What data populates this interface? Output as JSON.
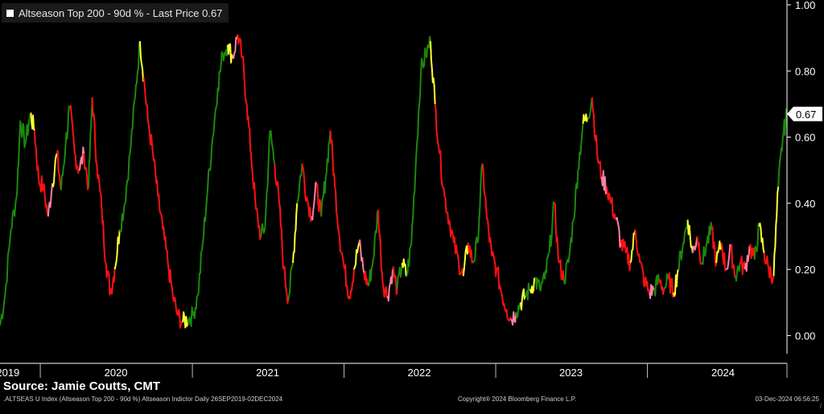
{
  "legend": {
    "label": "Altseason Top 200 - 90d % - Last Price 0.67",
    "swatch_color": "#ffffff"
  },
  "price_tag": {
    "text": "0.67",
    "value": 0.67
  },
  "source": "Source: Jamie Coutts, CMT",
  "footer": {
    "left": ".ALTSEAS U Index (Altseason Top 200 - 90d %) Altseason Indictor  Daily 26SEP2019-02DEC2024",
    "middle": "Copyright® 2024 Bloomberg Finance L.P.",
    "right": "03-Dec-2024 06:56:25",
    "corner": "/"
  },
  "colors": {
    "green": "#1a8a0a",
    "red": "#ff1010",
    "yellow": "#ffff33",
    "pink": "#ff7fa8",
    "axis": "#ffffff",
    "background": "#000000"
  },
  "chart_data": {
    "type": "line",
    "title": "Altseason Top 200 - 90d % - Last Price 0.67",
    "xlabel": "",
    "ylabel": "",
    "ylim": [
      -0.05,
      1.0
    ],
    "yticks": [
      "1.00",
      "0.80",
      "0.60",
      "0.40",
      "0.20",
      "0.00"
    ],
    "ytick_values": [
      1.0,
      0.8,
      0.6,
      0.4,
      0.2,
      0.0
    ],
    "xlim": [
      "2019-09-26",
      "2024-12-02"
    ],
    "xticks": [
      {
        "label": "2019",
        "date": "2019-10-15"
      },
      {
        "label": "2020",
        "date": "2020-07-01"
      },
      {
        "label": "2021",
        "date": "2021-07-01"
      },
      {
        "label": "2022",
        "date": "2022-07-01"
      },
      {
        "label": "2023",
        "date": "2023-07-01"
      },
      {
        "label": "2024",
        "date": "2024-07-01"
      }
    ],
    "year_dividers": [
      "2020-01-01",
      "2021-01-01",
      "2022-01-01",
      "2023-01-01",
      "2024-01-01"
    ],
    "grid": false,
    "legend_position": "top-left",
    "color_legend": {
      "g": "green",
      "r": "red",
      "y": "yellow",
      "p": "pink"
    },
    "series": [
      {
        "points": [
          [
            "2019-09-26",
            0.03,
            "y"
          ],
          [
            "2019-10-08",
            0.12,
            "g"
          ],
          [
            "2019-10-22",
            0.32,
            "g"
          ],
          [
            "2019-11-05",
            0.42,
            "g"
          ],
          [
            "2019-11-14",
            0.65,
            "g"
          ],
          [
            "2019-11-26",
            0.58,
            "g"
          ],
          [
            "2019-12-08",
            0.67,
            "g"
          ],
          [
            "2019-12-18",
            0.62,
            "y"
          ],
          [
            "2019-12-28",
            0.47,
            "r"
          ],
          [
            "2020-01-08",
            0.45,
            "r"
          ],
          [
            "2020-01-20",
            0.36,
            "r"
          ],
          [
            "2020-01-30",
            0.46,
            "p"
          ],
          [
            "2020-02-10",
            0.55,
            "y"
          ],
          [
            "2020-02-20",
            0.44,
            "r"
          ],
          [
            "2020-03-02",
            0.58,
            "g"
          ],
          [
            "2020-03-12",
            0.69,
            "g"
          ],
          [
            "2020-03-24",
            0.55,
            "r"
          ],
          [
            "2020-04-03",
            0.5,
            "r"
          ],
          [
            "2020-04-15",
            0.55,
            "p"
          ],
          [
            "2020-04-26",
            0.45,
            "r"
          ],
          [
            "2020-05-05",
            0.72,
            "g"
          ],
          [
            "2020-05-16",
            0.52,
            "r"
          ],
          [
            "2020-05-28",
            0.38,
            "r"
          ],
          [
            "2020-06-07",
            0.22,
            "r"
          ],
          [
            "2020-06-18",
            0.13,
            "r"
          ],
          [
            "2020-06-28",
            0.2,
            "r"
          ],
          [
            "2020-07-10",
            0.32,
            "y"
          ],
          [
            "2020-07-22",
            0.4,
            "g"
          ],
          [
            "2020-08-04",
            0.55,
            "g"
          ],
          [
            "2020-08-16",
            0.72,
            "g"
          ],
          [
            "2020-08-28",
            0.89,
            "g"
          ],
          [
            "2020-09-06",
            0.78,
            "y"
          ],
          [
            "2020-09-16",
            0.65,
            "r"
          ],
          [
            "2020-09-28",
            0.55,
            "r"
          ],
          [
            "2020-10-10",
            0.42,
            "r"
          ],
          [
            "2020-10-22",
            0.32,
            "r"
          ],
          [
            "2020-11-03",
            0.22,
            "r"
          ],
          [
            "2020-11-15",
            0.12,
            "r"
          ],
          [
            "2020-11-27",
            0.06,
            "r"
          ],
          [
            "2020-12-09",
            0.04,
            "r"
          ],
          [
            "2020-12-21",
            0.05,
            "y"
          ],
          [
            "2021-01-02",
            0.06,
            "g"
          ],
          [
            "2021-01-14",
            0.12,
            "g"
          ],
          [
            "2021-01-26",
            0.28,
            "g"
          ],
          [
            "2021-02-07",
            0.45,
            "g"
          ],
          [
            "2021-02-19",
            0.6,
            "g"
          ],
          [
            "2021-03-03",
            0.75,
            "g"
          ],
          [
            "2021-03-15",
            0.85,
            "g"
          ],
          [
            "2021-03-27",
            0.88,
            "g"
          ],
          [
            "2021-04-08",
            0.84,
            "y"
          ],
          [
            "2021-04-20",
            0.91,
            "p"
          ],
          [
            "2021-05-01",
            0.84,
            "r"
          ],
          [
            "2021-05-12",
            0.7,
            "r"
          ],
          [
            "2021-05-22",
            0.55,
            "r"
          ],
          [
            "2021-06-03",
            0.38,
            "r"
          ],
          [
            "2021-06-15",
            0.3,
            "r"
          ],
          [
            "2021-06-25",
            0.33,
            "g"
          ],
          [
            "2021-07-07",
            0.62,
            "g"
          ],
          [
            "2021-07-18",
            0.52,
            "g"
          ],
          [
            "2021-07-29",
            0.4,
            "r"
          ],
          [
            "2021-08-09",
            0.2,
            "r"
          ],
          [
            "2021-08-20",
            0.11,
            "r"
          ],
          [
            "2021-08-31",
            0.22,
            "g"
          ],
          [
            "2021-09-10",
            0.4,
            "y"
          ],
          [
            "2021-09-22",
            0.52,
            "g"
          ],
          [
            "2021-10-03",
            0.42,
            "r"
          ],
          [
            "2021-10-15",
            0.36,
            "r"
          ],
          [
            "2021-10-27",
            0.45,
            "p"
          ],
          [
            "2021-11-07",
            0.36,
            "r"
          ],
          [
            "2021-11-18",
            0.48,
            "g"
          ],
          [
            "2021-11-29",
            0.62,
            "g"
          ],
          [
            "2021-12-10",
            0.45,
            "r"
          ],
          [
            "2021-12-21",
            0.3,
            "r"
          ],
          [
            "2022-01-02",
            0.2,
            "r"
          ],
          [
            "2022-01-14",
            0.12,
            "r"
          ],
          [
            "2022-01-25",
            0.2,
            "r"
          ],
          [
            "2022-02-06",
            0.28,
            "y"
          ],
          [
            "2022-02-18",
            0.19,
            "p"
          ],
          [
            "2022-03-01",
            0.15,
            "r"
          ],
          [
            "2022-03-12",
            0.23,
            "g"
          ],
          [
            "2022-03-24",
            0.38,
            "g"
          ],
          [
            "2022-04-04",
            0.16,
            "r"
          ],
          [
            "2022-04-16",
            0.12,
            "r"
          ],
          [
            "2022-04-28",
            0.2,
            "p"
          ],
          [
            "2022-05-09",
            0.14,
            "r"
          ],
          [
            "2022-05-21",
            0.22,
            "g"
          ],
          [
            "2022-06-01",
            0.18,
            "y"
          ],
          [
            "2022-06-12",
            0.28,
            "g"
          ],
          [
            "2022-06-24",
            0.55,
            "g"
          ],
          [
            "2022-07-05",
            0.8,
            "g"
          ],
          [
            "2022-07-17",
            0.85,
            "g"
          ],
          [
            "2022-07-28",
            0.89,
            "g"
          ],
          [
            "2022-08-08",
            0.7,
            "y"
          ],
          [
            "2022-08-19",
            0.55,
            "r"
          ],
          [
            "2022-08-31",
            0.42,
            "r"
          ],
          [
            "2022-09-11",
            0.35,
            "r"
          ],
          [
            "2022-09-22",
            0.28,
            "r"
          ],
          [
            "2022-10-04",
            0.22,
            "r"
          ],
          [
            "2022-10-15",
            0.18,
            "r"
          ],
          [
            "2022-10-27",
            0.28,
            "y"
          ],
          [
            "2022-11-07",
            0.22,
            "r"
          ],
          [
            "2022-11-18",
            0.28,
            "g"
          ],
          [
            "2022-11-30",
            0.52,
            "g"
          ],
          [
            "2022-12-11",
            0.35,
            "r"
          ],
          [
            "2022-12-23",
            0.24,
            "r"
          ],
          [
            "2023-01-03",
            0.2,
            "r"
          ],
          [
            "2023-01-15",
            0.13,
            "r"
          ],
          [
            "2023-01-27",
            0.08,
            "r"
          ],
          [
            "2023-02-07",
            0.05,
            "r"
          ],
          [
            "2023-02-19",
            0.07,
            "p"
          ],
          [
            "2023-03-02",
            0.1,
            "g"
          ],
          [
            "2023-03-13",
            0.12,
            "y"
          ],
          [
            "2023-03-25",
            0.14,
            "g"
          ],
          [
            "2023-04-06",
            0.17,
            "y"
          ],
          [
            "2023-04-17",
            0.14,
            "g"
          ],
          [
            "2023-04-29",
            0.17,
            "g"
          ],
          [
            "2023-05-10",
            0.25,
            "g"
          ],
          [
            "2023-05-22",
            0.4,
            "g"
          ],
          [
            "2023-06-02",
            0.22,
            "r"
          ],
          [
            "2023-06-14",
            0.17,
            "r"
          ],
          [
            "2023-06-25",
            0.22,
            "g"
          ],
          [
            "2023-07-07",
            0.35,
            "g"
          ],
          [
            "2023-07-18",
            0.5,
            "g"
          ],
          [
            "2023-07-30",
            0.64,
            "g"
          ],
          [
            "2023-08-10",
            0.66,
            "y"
          ],
          [
            "2023-08-21",
            0.72,
            "g"
          ],
          [
            "2023-09-02",
            0.55,
            "r"
          ],
          [
            "2023-09-13",
            0.48,
            "r"
          ],
          [
            "2023-09-25",
            0.45,
            "p"
          ],
          [
            "2023-10-06",
            0.4,
            "r"
          ],
          [
            "2023-10-18",
            0.35,
            "r"
          ],
          [
            "2023-10-29",
            0.28,
            "p"
          ],
          [
            "2023-11-10",
            0.25,
            "r"
          ],
          [
            "2023-11-21",
            0.22,
            "r"
          ],
          [
            "2023-12-03",
            0.32,
            "y"
          ],
          [
            "2023-12-14",
            0.22,
            "r"
          ],
          [
            "2023-12-26",
            0.16,
            "r"
          ],
          [
            "2024-01-06",
            0.13,
            "r"
          ],
          [
            "2024-01-18",
            0.14,
            "p"
          ],
          [
            "2024-01-29",
            0.17,
            "g"
          ],
          [
            "2024-02-10",
            0.14,
            "r"
          ],
          [
            "2024-02-21",
            0.17,
            "g"
          ],
          [
            "2024-03-04",
            0.13,
            "r"
          ],
          [
            "2024-03-15",
            0.2,
            "y"
          ],
          [
            "2024-03-27",
            0.28,
            "g"
          ],
          [
            "2024-04-07",
            0.35,
            "g"
          ],
          [
            "2024-04-19",
            0.25,
            "y"
          ],
          [
            "2024-04-30",
            0.3,
            "p"
          ],
          [
            "2024-05-12",
            0.22,
            "r"
          ],
          [
            "2024-05-23",
            0.28,
            "g"
          ],
          [
            "2024-06-04",
            0.32,
            "g"
          ],
          [
            "2024-06-15",
            0.22,
            "r"
          ],
          [
            "2024-06-27",
            0.28,
            "y"
          ],
          [
            "2024-07-08",
            0.2,
            "r"
          ],
          [
            "2024-07-20",
            0.26,
            "p"
          ],
          [
            "2024-07-31",
            0.18,
            "r"
          ],
          [
            "2024-08-11",
            0.22,
            "g"
          ],
          [
            "2024-08-23",
            0.2,
            "r"
          ],
          [
            "2024-09-03",
            0.27,
            "p"
          ],
          [
            "2024-09-15",
            0.23,
            "r"
          ],
          [
            "2024-09-26",
            0.33,
            "g"
          ],
          [
            "2024-10-08",
            0.25,
            "y"
          ],
          [
            "2024-10-19",
            0.2,
            "r"
          ],
          [
            "2024-10-31",
            0.18,
            "r"
          ],
          [
            "2024-11-11",
            0.45,
            "y"
          ],
          [
            "2024-11-22",
            0.6,
            "g"
          ],
          [
            "2024-12-02",
            0.67,
            "g"
          ]
        ]
      }
    ]
  }
}
